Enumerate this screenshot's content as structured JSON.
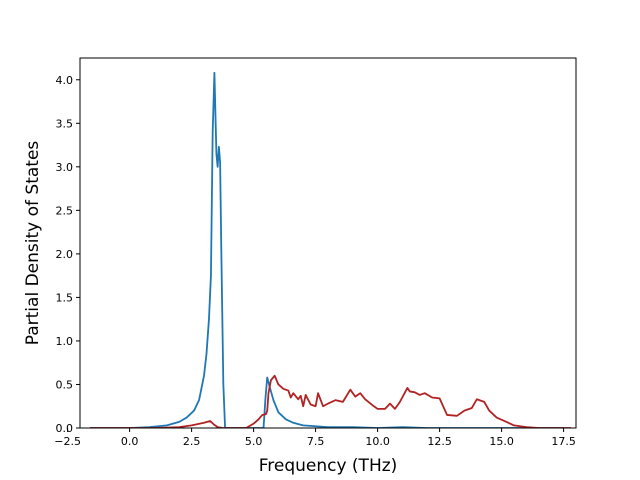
{
  "chart_data": {
    "type": "line",
    "title": "",
    "xlabel": "Frequency (THz)",
    "ylabel": "Partial Density of States",
    "xlim": [
      -2.0,
      18.0
    ],
    "ylim": [
      0.0,
      4.25
    ],
    "x_ticks": [
      -2.5,
      0.0,
      2.5,
      5.0,
      7.5,
      10.0,
      12.5,
      15.0,
      17.5
    ],
    "x_tick_labels": [
      "−2.5",
      "0.0",
      "2.5",
      "5.0",
      "7.5",
      "10.0",
      "12.5",
      "15.0",
      "17.5"
    ],
    "y_ticks": [
      0.0,
      0.5,
      1.0,
      1.5,
      2.0,
      2.5,
      3.0,
      3.5,
      4.0
    ],
    "y_tick_labels": [
      "0.0",
      "0.5",
      "1.0",
      "1.5",
      "2.0",
      "2.5",
      "3.0",
      "3.5",
      "4.0"
    ],
    "grid": false,
    "series": [
      {
        "color": "#1f77b4",
        "x": [
          -1.6,
          0.0,
          0.8,
          1.5,
          2.0,
          2.3,
          2.6,
          2.8,
          3.0,
          3.1,
          3.2,
          3.28,
          3.35,
          3.42,
          3.5,
          3.55,
          3.6,
          3.65,
          3.7,
          3.78,
          3.85,
          3.9,
          4.5,
          5.0,
          5.4,
          5.48,
          5.55,
          5.7,
          5.8,
          6.0,
          6.3,
          6.6,
          7.0,
          7.5,
          8.0,
          9.0,
          10.0,
          11.0,
          12.0,
          13.0,
          14.0,
          15.0,
          16.0,
          17.5
        ],
        "y": [
          0.0,
          0.0,
          0.01,
          0.03,
          0.07,
          0.12,
          0.2,
          0.32,
          0.6,
          0.85,
          1.25,
          1.75,
          3.4,
          4.08,
          3.15,
          3.0,
          3.23,
          3.05,
          2.0,
          0.5,
          0.0,
          0.0,
          0.0,
          0.0,
          0.0,
          0.35,
          0.58,
          0.42,
          0.32,
          0.18,
          0.1,
          0.06,
          0.03,
          0.02,
          0.01,
          0.01,
          0.0,
          0.01,
          0.0,
          0.0,
          0.0,
          0.0,
          0.0,
          0.0
        ]
      },
      {
        "color": "#b22222",
        "x": [
          -1.6,
          0.0,
          1.0,
          2.0,
          2.5,
          3.0,
          3.25,
          3.4,
          3.55,
          3.75,
          3.85,
          4.7,
          5.0,
          5.2,
          5.35,
          5.5,
          5.55,
          5.6,
          5.7,
          5.85,
          6.0,
          6.2,
          6.4,
          6.5,
          6.6,
          6.8,
          6.9,
          7.0,
          7.1,
          7.3,
          7.5,
          7.6,
          7.8,
          8.0,
          8.3,
          8.6,
          8.9,
          9.1,
          9.3,
          9.5,
          9.8,
          10.0,
          10.3,
          10.5,
          10.7,
          10.9,
          11.2,
          11.3,
          11.5,
          11.7,
          11.9,
          12.2,
          12.5,
          12.8,
          13.2,
          13.5,
          13.8,
          14.0,
          14.3,
          14.5,
          14.8,
          15.2,
          15.5,
          16.0,
          16.5,
          17.0,
          17.5,
          17.8
        ],
        "y": [
          0.0,
          0.0,
          0.0,
          0.01,
          0.03,
          0.06,
          0.08,
          0.04,
          0.01,
          0.0,
          0.0,
          0.0,
          0.05,
          0.1,
          0.15,
          0.16,
          0.2,
          0.4,
          0.55,
          0.6,
          0.5,
          0.45,
          0.43,
          0.35,
          0.4,
          0.33,
          0.37,
          0.25,
          0.38,
          0.27,
          0.25,
          0.4,
          0.25,
          0.28,
          0.32,
          0.3,
          0.44,
          0.36,
          0.4,
          0.33,
          0.26,
          0.22,
          0.22,
          0.28,
          0.22,
          0.3,
          0.46,
          0.42,
          0.41,
          0.38,
          0.4,
          0.35,
          0.34,
          0.15,
          0.14,
          0.2,
          0.23,
          0.33,
          0.3,
          0.2,
          0.12,
          0.07,
          0.03,
          0.01,
          0.0,
          0.0,
          0.0,
          0.0
        ]
      }
    ]
  }
}
